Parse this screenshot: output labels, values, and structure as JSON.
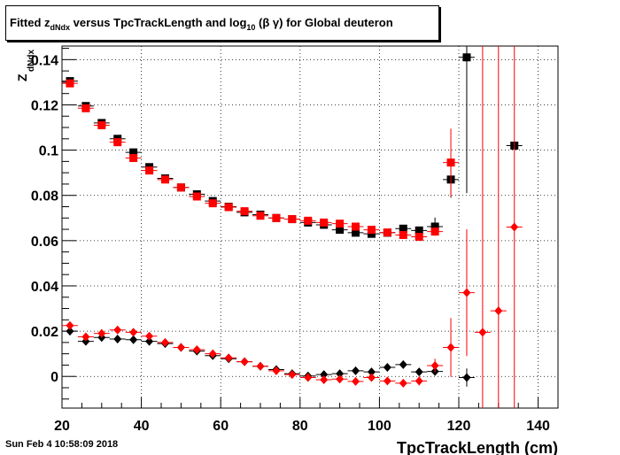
{
  "header": {
    "title_parts": [
      "Fitted  z",
      "dNdx",
      "  versus TpcTrackLength and log",
      "10",
      " (β γ) for Global deuteron"
    ]
  },
  "footer": {
    "date": "Sun Feb  4 10:58:09 2018"
  },
  "chart_data": {
    "type": "scatter",
    "xlabel": "TpcTrackLength (cm)",
    "ylabel_main": "Z",
    "ylabel_sub": "dNdx",
    "xlim": [
      20,
      145
    ],
    "ylim": [
      -0.014,
      0.146
    ],
    "xticks": [
      20,
      40,
      60,
      80,
      100,
      120,
      140
    ],
    "yticks": [
      0,
      0.02,
      0.04,
      0.06,
      0.08,
      0.1,
      0.12,
      0.14
    ],
    "ytick_labels": [
      "0",
      "0.02",
      "0.04",
      "0.06",
      "0.08",
      "0.1",
      "0.12",
      "0.14"
    ],
    "grid": true,
    "series": [
      {
        "marker": "square",
        "color": "#000000",
        "x": [
          22,
          26,
          30,
          34,
          38,
          42,
          46,
          50,
          54,
          58,
          62,
          66,
          70,
          74,
          78,
          82,
          86,
          90,
          94,
          98,
          102,
          106,
          110,
          114,
          118,
          122,
          134
        ],
        "y": [
          0.1305,
          0.1195,
          0.112,
          0.105,
          0.099,
          0.0925,
          0.0875,
          0.0835,
          0.0805,
          0.0775,
          0.075,
          0.0725,
          0.0715,
          0.07,
          0.0695,
          0.068,
          0.067,
          0.0648,
          0.0635,
          0.063,
          0.0635,
          0.0653,
          0.0645,
          0.0662,
          0.087,
          0.141,
          0.102
        ],
        "err": [
          0,
          0,
          0,
          0,
          0,
          0,
          0,
          0,
          0,
          0,
          0,
          0,
          0,
          0,
          0,
          0,
          0,
          0,
          0,
          0,
          0,
          0,
          0,
          0.004,
          0.008,
          0.06,
          0
        ]
      },
      {
        "marker": "square",
        "color": "#ff0000",
        "x": [
          22,
          26,
          30,
          34,
          38,
          42,
          46,
          50,
          54,
          58,
          62,
          66,
          70,
          74,
          78,
          82,
          86,
          90,
          94,
          98,
          102,
          106,
          110,
          114,
          118
        ],
        "y": [
          0.1295,
          0.1185,
          0.111,
          0.1035,
          0.0965,
          0.091,
          0.087,
          0.0835,
          0.0795,
          0.0765,
          0.0748,
          0.073,
          0.071,
          0.07,
          0.0695,
          0.0688,
          0.068,
          0.0675,
          0.0662,
          0.0648,
          0.0636,
          0.0625,
          0.0617,
          0.064,
          0.0945
        ],
        "err": [
          0,
          0,
          0,
          0,
          0,
          0,
          0,
          0,
          0,
          0,
          0,
          0,
          0,
          0,
          0,
          0,
          0,
          0,
          0,
          0,
          0,
          0,
          0,
          0,
          0.015
        ]
      },
      {
        "marker": "diamond",
        "color": "#000000",
        "x": [
          22,
          26,
          30,
          34,
          38,
          42,
          46,
          50,
          54,
          58,
          62,
          66,
          70,
          74,
          78,
          82,
          86,
          90,
          94,
          98,
          102,
          106,
          110,
          114,
          122
        ],
        "y": [
          0.02,
          0.0155,
          0.0172,
          0.0165,
          0.0162,
          0.0155,
          0.0145,
          0.0128,
          0.0112,
          0.0092,
          0.0078,
          0.0065,
          0.0045,
          0.003,
          0.0012,
          0.0002,
          0.0008,
          0.0012,
          0.0025,
          0.002,
          0.004,
          0.0052,
          0.002,
          0.0022,
          -0.0005
        ],
        "err": [
          0,
          0,
          0,
          0,
          0,
          0,
          0,
          0,
          0,
          0,
          0,
          0,
          0,
          0,
          0,
          0,
          0,
          0,
          0,
          0,
          0,
          0,
          0,
          0,
          0.004
        ]
      },
      {
        "marker": "diamond",
        "color": "#ff0000",
        "x": [
          22,
          26,
          30,
          34,
          38,
          42,
          46,
          50,
          54,
          58,
          62,
          66,
          70,
          74,
          78,
          82,
          86,
          90,
          94,
          98,
          102,
          106,
          110,
          114,
          118,
          122,
          126,
          130,
          134
        ],
        "y": [
          0.0225,
          0.0175,
          0.019,
          0.0205,
          0.0195,
          0.0178,
          0.015,
          0.0128,
          0.0118,
          0.01,
          0.0082,
          0.0065,
          0.0045,
          0.0025,
          0.0008,
          -0.0005,
          -0.0015,
          -0.0012,
          -0.0022,
          -0.0005,
          -0.002,
          -0.003,
          -0.002,
          0.0048,
          0.0128,
          0.037,
          0.0195,
          0.029,
          0.066
        ],
        "err": [
          0,
          0,
          0,
          0,
          0,
          0,
          0,
          0,
          0,
          0,
          0,
          0,
          0,
          0,
          0,
          0,
          0,
          0,
          0,
          0,
          0,
          0,
          0.002,
          0.003,
          0.013,
          0.028,
          0.2,
          0.2,
          0.2
        ]
      }
    ]
  }
}
